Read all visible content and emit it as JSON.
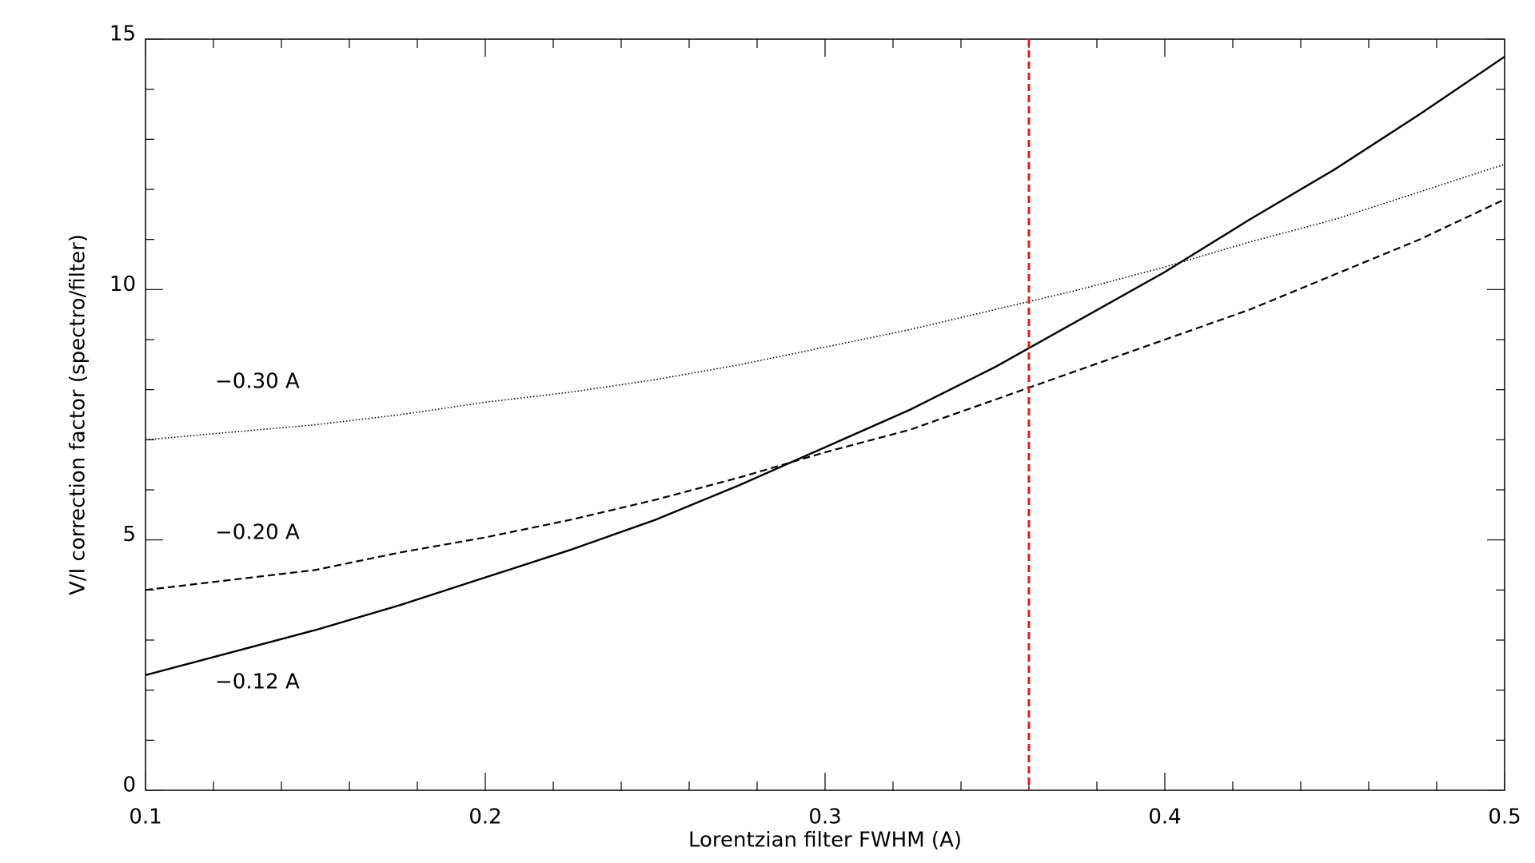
{
  "chart_data": {
    "type": "line",
    "xlabel": "Lorentzian filter FWHM (A)",
    "ylabel": "V/I correction factor (spectro/filter)",
    "x": [
      0.1,
      0.125,
      0.15,
      0.175,
      0.2,
      0.225,
      0.25,
      0.275,
      0.3,
      0.325,
      0.35,
      0.375,
      0.4,
      0.425,
      0.45,
      0.475,
      0.5
    ],
    "series": [
      {
        "name": "−0.12 A",
        "color": "#000000",
        "dash": "solid",
        "values": [
          2.3,
          2.75,
          3.2,
          3.7,
          4.25,
          4.8,
          5.4,
          6.1,
          6.85,
          7.6,
          8.45,
          9.4,
          10.35,
          11.4,
          12.4,
          13.5,
          14.65
        ]
      },
      {
        "name": "−0.20 A",
        "color": "#000000",
        "dash": "dashed",
        "values": [
          4.0,
          4.2,
          4.4,
          4.75,
          5.05,
          5.4,
          5.8,
          6.25,
          6.75,
          7.2,
          7.8,
          8.4,
          9.0,
          9.6,
          10.3,
          11.0,
          11.8
        ]
      },
      {
        "name": "−0.30 A",
        "color": "#000000",
        "dash": "dotted",
        "values": [
          7.0,
          7.15,
          7.3,
          7.5,
          7.75,
          7.95,
          8.2,
          8.5,
          8.85,
          9.2,
          9.6,
          10.0,
          10.45,
          10.95,
          11.4,
          11.95,
          12.5
        ]
      }
    ],
    "vline": {
      "x": 0.36,
      "color": "#d62020",
      "dash": "dashed"
    },
    "xlim": [
      0.1,
      0.5
    ],
    "xticks": [
      0.1,
      0.2,
      0.3,
      0.4,
      0.5
    ],
    "xminor": 5,
    "ylim": [
      0,
      15
    ],
    "yticks": [
      0,
      5,
      10,
      15
    ],
    "yminor": 5
  }
}
